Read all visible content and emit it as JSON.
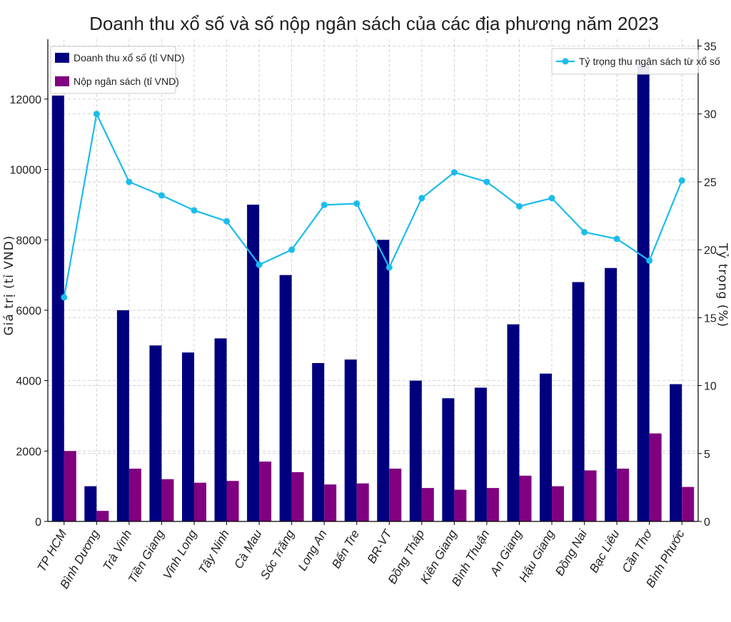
{
  "chart_data": {
    "type": "bar",
    "title": "Doanh thu xổ số và số nộp ngân sách của các địa phương năm 2023",
    "ylabel": "Giá trị (tỉ VND)",
    "y2label": "Tỷ trọng (%)",
    "ylim": [
      0,
      13700
    ],
    "y2lim": [
      0,
      35.5
    ],
    "yticks": [
      0,
      2000,
      4000,
      6000,
      8000,
      10000,
      12000
    ],
    "y2ticks": [
      0,
      5,
      10,
      15,
      20,
      25,
      30,
      35
    ],
    "grid": true,
    "categories": [
      "TP HCM",
      "Bình Dương",
      "Trà Vinh",
      "Tiền Giang",
      "Vĩnh Long",
      "Tây Ninh",
      "Cà Mau",
      "Sóc Trăng",
      "Long An",
      "Bến Tre",
      "BR-VT",
      "Đồng Tháp",
      "Kiên Giang",
      "Bình Thuận",
      "An Giang",
      "Hậu Giang",
      "Đồng Nai",
      "Bạc Liêu",
      "Cần Thơ",
      "Bình Phước"
    ],
    "series": [
      {
        "name": "Doanh thu xổ số (tỉ VND)",
        "kind": "bar",
        "axis": "left",
        "color": "#00007f",
        "values": [
          12100,
          1000,
          6000,
          5000,
          4800,
          5200,
          9000,
          7000,
          4500,
          4600,
          8000,
          4000,
          3500,
          3800,
          5600,
          4200,
          6800,
          7200,
          13000,
          3900
        ]
      },
      {
        "name": "Nộp ngân sách (tỉ VND)",
        "kind": "bar",
        "axis": "left",
        "color": "#800080",
        "values": [
          2000,
          300,
          1500,
          1200,
          1100,
          1150,
          1700,
          1400,
          1050,
          1080,
          1500,
          950,
          900,
          950,
          1300,
          1000,
          1450,
          1500,
          2500,
          980
        ]
      },
      {
        "name": "Tỷ trọng thu ngân sách từ xổ số",
        "kind": "line",
        "axis": "right",
        "color": "#1bbcec",
        "values": [
          16.5,
          30.0,
          25.0,
          24.0,
          22.9,
          22.1,
          18.9,
          20.0,
          23.3,
          23.4,
          18.7,
          23.8,
          25.7,
          25.0,
          23.2,
          23.8,
          21.3,
          20.8,
          19.2,
          25.1
        ]
      }
    ],
    "legend": [
      {
        "placement": "top-left"
      },
      {
        "placement": "top-right"
      }
    ]
  }
}
